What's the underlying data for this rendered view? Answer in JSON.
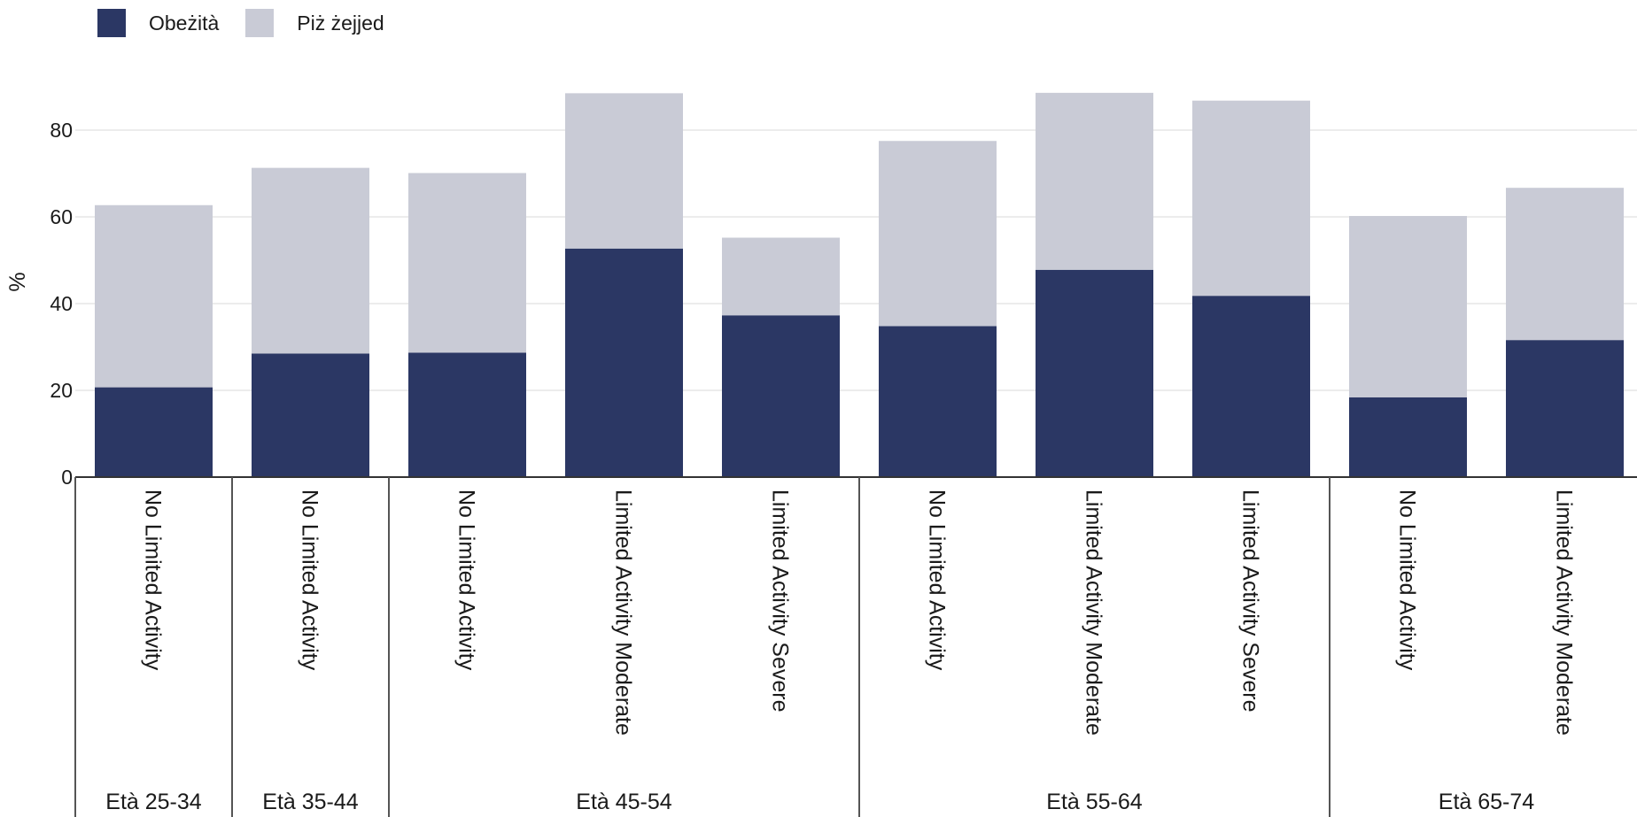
{
  "legend": [
    {
      "label": "Obeżità",
      "color": "#2b3764"
    },
    {
      "label": "Piż żejjed",
      "color": "#c9cbd6"
    }
  ],
  "chart_data": {
    "type": "bar",
    "stacked": true,
    "ylabel": "%",
    "ylim": [
      0,
      90
    ],
    "yticks": [
      0,
      20,
      40,
      60,
      80
    ],
    "grid": true,
    "legend_position": "top-left",
    "categories": [
      {
        "group": "Età 25-34",
        "label": "No Limited Activity"
      },
      {
        "group": "Età 35-44",
        "label": "No Limited Activity"
      },
      {
        "group": "Età 45-54",
        "label": "No Limited Activity"
      },
      {
        "group": "Età 45-54",
        "label": "Limited Activity Moderate"
      },
      {
        "group": "Età 45-54",
        "label": "Limited Activity Severe"
      },
      {
        "group": "Età 55-64",
        "label": "No Limited Activity"
      },
      {
        "group": "Età 55-64",
        "label": "Limited Activity Moderate"
      },
      {
        "group": "Età 55-64",
        "label": "Limited Activity Severe"
      },
      {
        "group": "Età 65-74",
        "label": "No Limited Activity"
      },
      {
        "group": "Età 65-74",
        "label": "Limited Activity Moderate"
      }
    ],
    "series": [
      {
        "name": "Obeżità",
        "color": "#2b3764",
        "values": [
          20.7,
          28.5,
          28.7,
          52.7,
          37.3,
          34.8,
          47.8,
          41.8,
          18.4,
          31.6
        ]
      },
      {
        "name": "Piż żejjed",
        "color": "#c9cbd6",
        "values": [
          42.0,
          42.8,
          41.4,
          35.8,
          17.9,
          42.7,
          40.8,
          45.0,
          41.8,
          35.1
        ]
      }
    ],
    "groups": [
      "Età 25-34",
      "Età 35-44",
      "Età 45-54",
      "Età 55-64",
      "Età 65-74"
    ]
  }
}
